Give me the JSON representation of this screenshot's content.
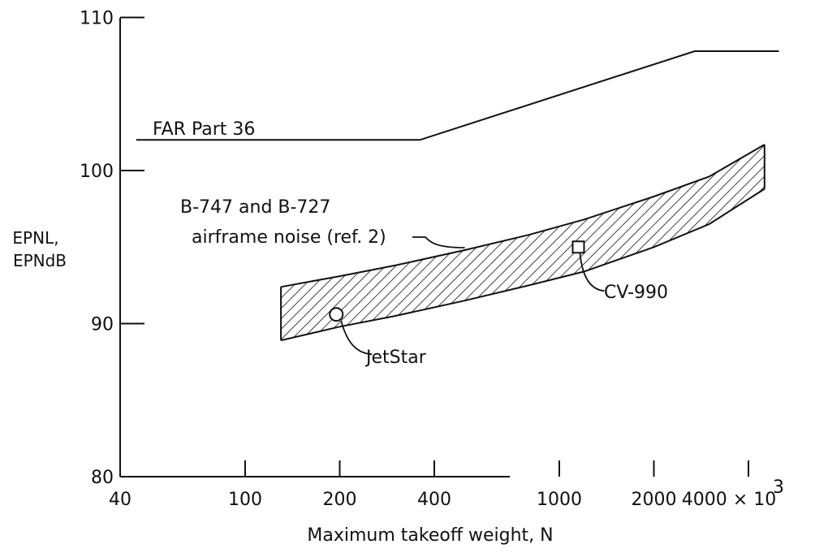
{
  "chart_data": {
    "type": "line",
    "x_scale": "log",
    "xlabel": "Maximum takeoff weight, N",
    "ylabel_line1": "EPNL,",
    "ylabel_line2": "EPNdB",
    "ylim": [
      80,
      110
    ],
    "xlim": [
      40,
      5000
    ],
    "x_ticks": [
      {
        "value": 40,
        "label": "40"
      },
      {
        "value": 100,
        "label": "100"
      },
      {
        "value": 200,
        "label": "200"
      },
      {
        "value": 400,
        "label": "400"
      },
      {
        "value": 1000,
        "label": "1000"
      },
      {
        "value": 2000,
        "label": "2000"
      },
      {
        "value": 4000,
        "label": "4000 × 10"
      }
    ],
    "x_multiplier_exponent": "3",
    "y_ticks": [
      {
        "value": 80,
        "label": "80"
      },
      {
        "value": 90,
        "label": "90"
      },
      {
        "value": 100,
        "label": "100"
      },
      {
        "value": 110,
        "label": "110"
      }
    ],
    "grid": false,
    "series": [
      {
        "name": "FAR Part 36",
        "style": "line",
        "x": [
          45,
          360,
          2700,
          5000
        ],
        "y": [
          102,
          102,
          107.8,
          107.8
        ]
      },
      {
        "name": "B-747 and B-727 airframe noise (ref. 2)",
        "style": "hatched-band",
        "x": [
          130,
          200,
          300,
          500,
          800,
          1200,
          2000,
          3000,
          4500
        ],
        "y_upper": [
          92.4,
          93.1,
          93.8,
          94.8,
          95.8,
          96.8,
          98.3,
          99.6,
          101.7
        ],
        "y_lower": [
          88.9,
          89.8,
          90.5,
          91.5,
          92.5,
          93.4,
          95.0,
          96.5,
          98.8
        ]
      }
    ],
    "points": [
      {
        "name": "JetStar",
        "marker": "circle",
        "x": 195,
        "y": 90.6
      },
      {
        "name": "CV-990",
        "marker": "square",
        "x": 1150,
        "y": 95
      }
    ],
    "labels": {
      "far": "FAR Part 36",
      "band_line1": "B-747 and B-727",
      "band_line2": "airframe noise (ref. 2)",
      "jetstar": "JetStar",
      "cv990": "CV-990"
    }
  }
}
